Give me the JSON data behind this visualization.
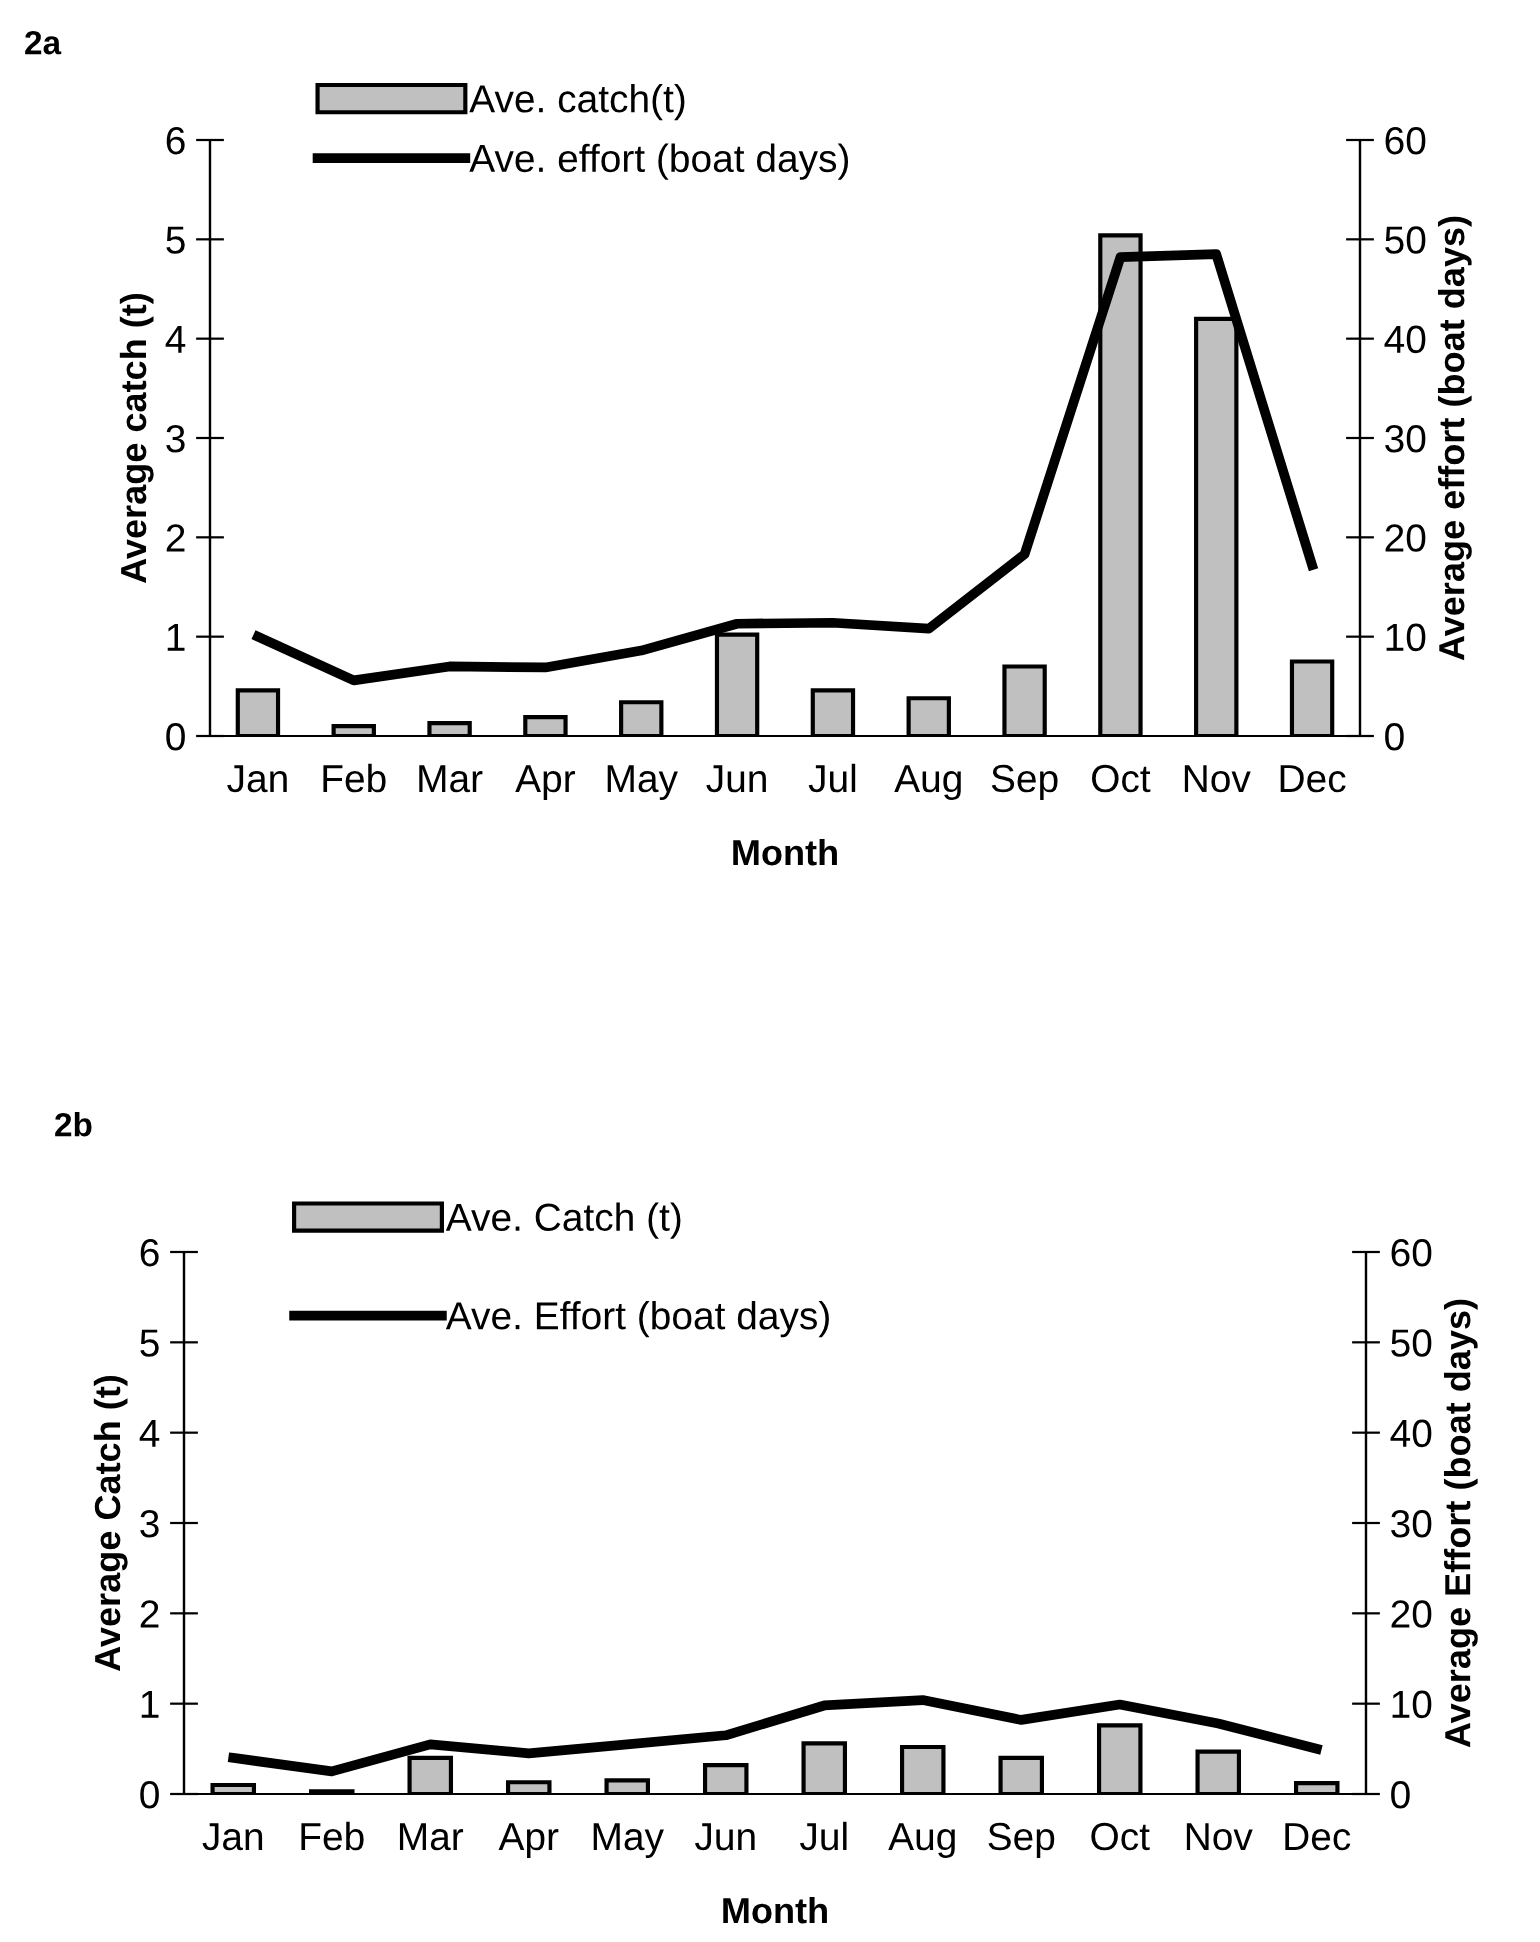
{
  "chart_data": [
    {
      "type": "bar",
      "title": "2a",
      "xlabel": "Month",
      "ylabel": "Average catch (t)",
      "y2label": "Average effort (boat days)",
      "categories": [
        "Jan",
        "Feb",
        "Mar",
        "Apr",
        "May",
        "Jun",
        "Jul",
        "Aug",
        "Sep",
        "Oct",
        "Nov",
        "Dec"
      ],
      "series": [
        {
          "name": "Ave. catch(t)",
          "color": "#c0c0c0",
          "values": [
            0.46,
            0.1,
            0.13,
            0.19,
            0.34,
            1.02,
            0.46,
            0.38,
            0.7,
            5.04,
            4.2,
            0.75
          ]
        },
        {
          "name": "Ave. effort (boat days)",
          "type": "line",
          "axis": "y2",
          "color": "#000000",
          "values": [
            10,
            5.6,
            7,
            6.9,
            8.6,
            11.3,
            11.4,
            10.8,
            18.3,
            48.2,
            48.5,
            17.2
          ]
        }
      ],
      "ylim": [
        0,
        6
      ],
      "yticks": [
        0,
        1,
        2,
        3,
        4,
        5,
        6
      ],
      "y2lim": [
        0,
        60
      ],
      "y2ticks": [
        0,
        10,
        20,
        30,
        40,
        50,
        60
      ],
      "grid": false,
      "legend": "top left",
      "marker": "none",
      "line_style": "solid"
    },
    {
      "type": "bar",
      "title": "2b",
      "xlabel": "Month",
      "ylabel": "Average Catch (t)",
      "y2label": "Average Effort (boat days)",
      "categories": [
        "Jan",
        "Feb",
        "Mar",
        "Apr",
        "May",
        "Jun",
        "Jul",
        "Aug",
        "Sep",
        "Oct",
        "Nov",
        "Dec"
      ],
      "series": [
        {
          "name": "Ave. Catch (t)",
          "color": "#c0c0c0",
          "values": [
            0.1,
            0.03,
            0.4,
            0.13,
            0.15,
            0.32,
            0.56,
            0.52,
            0.4,
            0.76,
            0.47,
            0.12
          ]
        },
        {
          "name": "Ave. Effort (boat days)",
          "type": "line",
          "axis": "y2",
          "color": "#000000",
          "values": [
            4,
            2.5,
            5.5,
            4.5,
            5.5,
            6.5,
            9.8,
            10.4,
            8.2,
            9.9,
            7.8,
            5
          ]
        }
      ],
      "ylim": [
        0,
        6
      ],
      "yticks": [
        0,
        1,
        2,
        3,
        4,
        5,
        6
      ],
      "y2lim": [
        0,
        60
      ],
      "y2ticks": [
        0,
        10,
        20,
        30,
        40,
        50,
        60
      ],
      "grid": false,
      "legend": "top left",
      "marker": "none",
      "line_style": "solid"
    }
  ]
}
